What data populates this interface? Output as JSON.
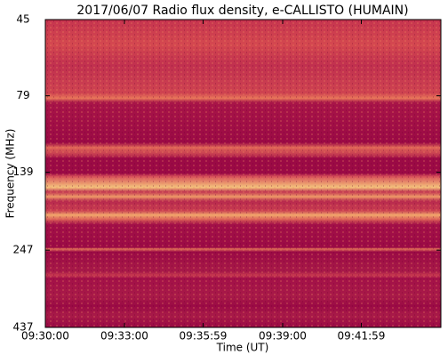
{
  "chart_data": {
    "type": "spectrogram",
    "title": "2017/06/07  Radio flux density, e-CALLISTO (HUMAIN)",
    "xlabel": "Time (UT)",
    "ylabel": "Frequency (MHz)",
    "xlim": [
      "09:30:00",
      "09:45:00"
    ],
    "xticks": [
      "09:30:00",
      "09:33:00",
      "09:35:59",
      "09:39:00",
      "09:41:59"
    ],
    "ylim": [
      45,
      437
    ],
    "yticks": [
      45,
      79,
      139,
      247,
      437
    ],
    "ylog": true,
    "yinverted": true
  }
}
